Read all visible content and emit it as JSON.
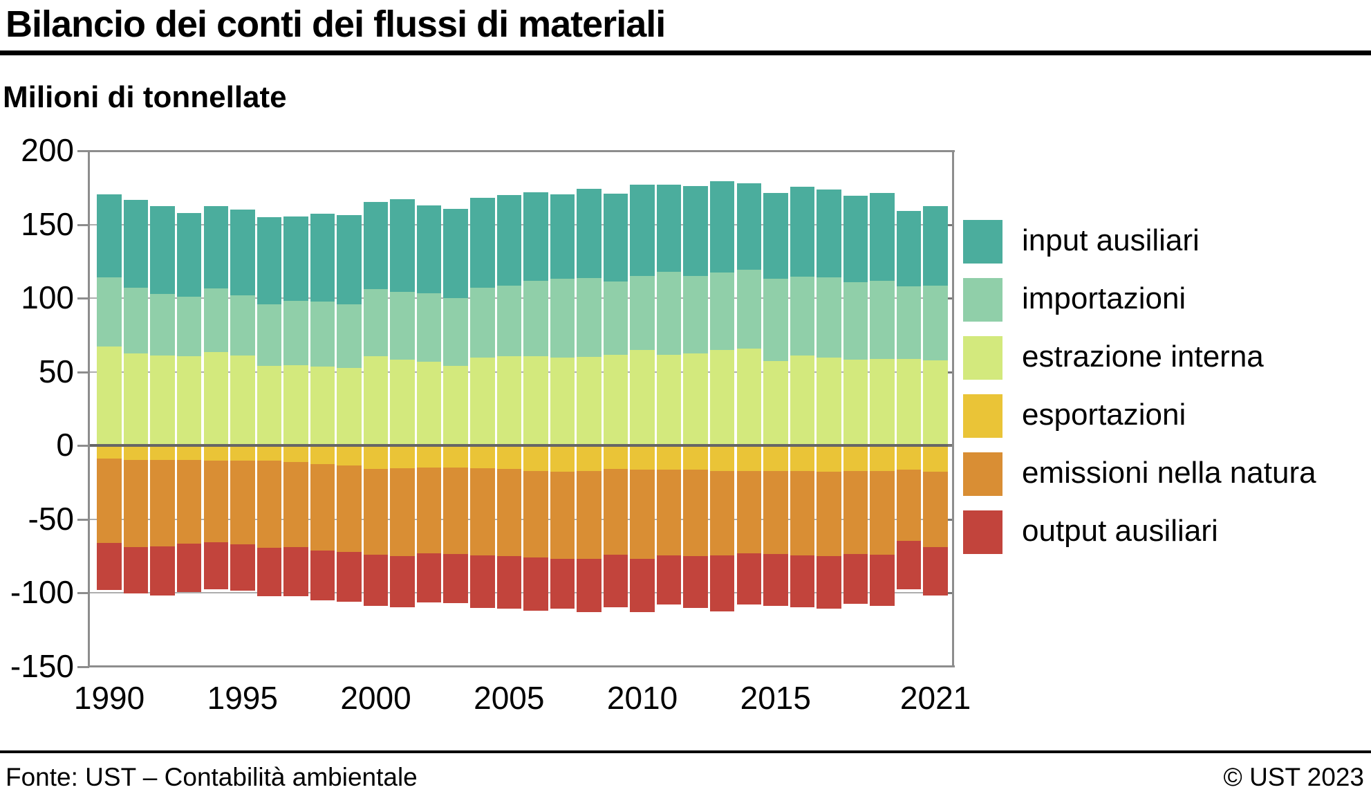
{
  "header": {
    "title": "Bilancio dei conti dei flussi di materiali",
    "subtitle": "Milioni di tonnellate"
  },
  "footer": {
    "source": "Fonte: UST – Contabilità ambientale",
    "copyright": "© UST 2023"
  },
  "colors": {
    "input_ausiliari": "#4bad9d",
    "importazioni": "#90cfa9",
    "estrazione_interna": "#d3e97d",
    "esportazioni": "#eac437",
    "emissioni_nella_natura": "#d98e34",
    "output_ausiliari": "#c2443c",
    "grid": "#adadad",
    "zero_line": "#666666",
    "plot_border": "#8d8d8d"
  },
  "chart_data": {
    "type": "bar",
    "stacked": true,
    "title": "Bilancio dei conti dei flussi di materiali",
    "ylabel": "Milioni di tonnellate",
    "xlabel": "",
    "grid": true,
    "legend_position": "right",
    "ylim": [
      -150,
      200
    ],
    "y_ticks": [
      200,
      150,
      100,
      50,
      0,
      -50,
      -100,
      -150
    ],
    "x_tick_years": [
      1990,
      1995,
      2000,
      2005,
      2010,
      2015,
      2021
    ],
    "x_tick_labels": [
      "1990",
      "1995",
      "2000",
      "2005",
      "2010",
      "2015",
      "2021"
    ],
    "years": [
      1990,
      1991,
      1992,
      1993,
      1994,
      1995,
      1996,
      1997,
      1998,
      1999,
      2000,
      2001,
      2002,
      2003,
      2004,
      2005,
      2006,
      2007,
      2008,
      2009,
      2010,
      2011,
      2012,
      2013,
      2014,
      2015,
      2016,
      2017,
      2018,
      2019,
      2020,
      2021
    ],
    "positive_stack_order": [
      "estrazione interna",
      "importazioni",
      "input ausiliari"
    ],
    "negative_stack_order": [
      "esportazioni",
      "emissioni nella natura",
      "output ausiliari"
    ],
    "series": [
      {
        "name": "input ausiliari",
        "color": "#4bad9d",
        "values": [
          56.5,
          59.5,
          59.5,
          57,
          56,
          58,
          59,
          57.5,
          60,
          60.5,
          59.5,
          62.5,
          59.5,
          60.5,
          61,
          61.5,
          60,
          57.5,
          60.5,
          59.5,
          62,
          59,
          61,
          62,
          58.5,
          58.5,
          61,
          59.5,
          58.5,
          59.5,
          51,
          54
        ]
      },
      {
        "name": "importazioni",
        "color": "#90cfa9",
        "values": [
          47,
          44.5,
          42,
          40.5,
          43,
          41,
          42,
          43.5,
          44,
          43.5,
          45.5,
          46,
          46.5,
          46,
          47.5,
          48,
          51.5,
          53.5,
          53.5,
          50,
          50,
          56.5,
          52.5,
          52.5,
          53.5,
          55.5,
          53.5,
          54.5,
          52.5,
          53,
          49,
          50.5
        ]
      },
      {
        "name": "estrazione interna",
        "color": "#d3e97d",
        "values": [
          67,
          62.5,
          61,
          60.5,
          63.5,
          61,
          54,
          54.5,
          53.5,
          52.5,
          60.5,
          58.5,
          57,
          54,
          59.5,
          60.5,
          60.5,
          59.5,
          60,
          61.5,
          65,
          61.5,
          62.5,
          65,
          66,
          57.5,
          61,
          59.5,
          58.5,
          59,
          59,
          58
        ]
      },
      {
        "name": "esportazioni",
        "color": "#eac437",
        "values": [
          -9,
          -9.5,
          -9.5,
          -9.5,
          -10,
          -10,
          -10,
          -11,
          -12.5,
          -13.5,
          -16,
          -15.5,
          -15,
          -15,
          -15.5,
          -16,
          -17,
          -17.5,
          -17,
          -16,
          -16.5,
          -16.5,
          -16.5,
          -17,
          -17,
          -17,
          -17,
          -17.5,
          -17,
          -17,
          -16.5,
          -17.5
        ]
      },
      {
        "name": "emissioni nella natura",
        "color": "#d98e34",
        "values": [
          -57,
          -59.5,
          -59,
          -57,
          -55.5,
          -57,
          -59.5,
          -58,
          -58.5,
          -58.5,
          -58,
          -59.5,
          -58,
          -58.5,
          -59,
          -59,
          -59,
          -59.5,
          -60,
          -58,
          -60.5,
          -58,
          -58.5,
          -57.5,
          -56,
          -56.5,
          -57.5,
          -57.5,
          -56.5,
          -57,
          -48,
          -51.5
        ]
      },
      {
        "name": "output ausiliari",
        "color": "#c2443c",
        "values": [
          -32,
          -31.5,
          -33,
          -33,
          -32,
          -31.5,
          -32.5,
          -33,
          -34,
          -34,
          -34.5,
          -34.5,
          -33.5,
          -33.5,
          -35.5,
          -35.5,
          -36,
          -33.5,
          -36,
          -35.5,
          -36,
          -33.5,
          -35,
          -38,
          -35,
          -35,
          -35,
          -35.5,
          -34,
          -34.5,
          -33,
          -32.5
        ]
      }
    ]
  }
}
